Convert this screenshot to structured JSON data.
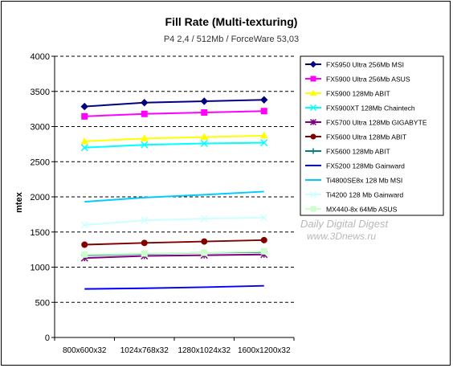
{
  "chart_data": {
    "type": "line",
    "title": "Fill Rate (Multi-texturing)",
    "subtitle": "P4 2,4 / 512Mb / ForceWare 53,03",
    "xlabel": "",
    "ylabel": "mtex",
    "ylim": [
      0,
      4000
    ],
    "yticks": [
      0,
      500,
      1000,
      1500,
      2000,
      2500,
      3000,
      3500,
      4000
    ],
    "grid": true,
    "legend_position": "right",
    "categories": [
      "800x600x32",
      "1024x768x32",
      "1280x1024x32",
      "1600x1200x32"
    ],
    "series": [
      {
        "name": "FX5950 Ultra 256Mb MSI",
        "color": "#000080",
        "marker": "diamond",
        "values": [
          3285,
          3340,
          3360,
          3380
        ]
      },
      {
        "name": "FX5900 Ultra 256Mb ASUS",
        "color": "#ff00ff",
        "marker": "square",
        "values": [
          3145,
          3180,
          3200,
          3220
        ]
      },
      {
        "name": "FX5900 128Mb ABIT",
        "color": "#ffff00",
        "marker": "triangle",
        "values": [
          2790,
          2830,
          2850,
          2870
        ]
      },
      {
        "name": "FX5900XT 128Mb Chaintech",
        "color": "#00ffff",
        "marker": "x",
        "values": [
          2700,
          2740,
          2760,
          2770
        ]
      },
      {
        "name": "FX5700 Ultra 128Mb GIGABYTE",
        "color": "#800080",
        "marker": "star",
        "values": [
          1130,
          1160,
          1170,
          1180
        ]
      },
      {
        "name": "FX5600 Ultra 128Mb ABIT",
        "color": "#800000",
        "marker": "circle",
        "values": [
          1320,
          1345,
          1365,
          1385
        ]
      },
      {
        "name": "FX5600 128Mb ABIT",
        "color": "#008080",
        "marker": "plus",
        "values": [
          1170,
          1190,
          1205,
          1215
        ]
      },
      {
        "name": "FX5200 128Mb Gainward",
        "color": "#0000ff",
        "marker": "none",
        "values": [
          690,
          700,
          715,
          735
        ]
      },
      {
        "name": "Ti4800SE8x 128 Mb MSI",
        "color": "#00ccff",
        "marker": "none",
        "values": [
          1930,
          1990,
          2030,
          2075
        ]
      },
      {
        "name": "Ti4200 128 Mb Gainward",
        "color": "#ccffff",
        "marker": "x",
        "values": [
          1600,
          1665,
          1690,
          1705
        ]
      },
      {
        "name": "MX440-8x 64Mb ASUS",
        "color": "#ccffcc",
        "marker": "square",
        "values": [
          1180,
          1195,
          1205,
          1225
        ]
      }
    ]
  },
  "watermark": {
    "line1": "Daily Digital Digest",
    "line2": "www.3Dnews.ru"
  }
}
